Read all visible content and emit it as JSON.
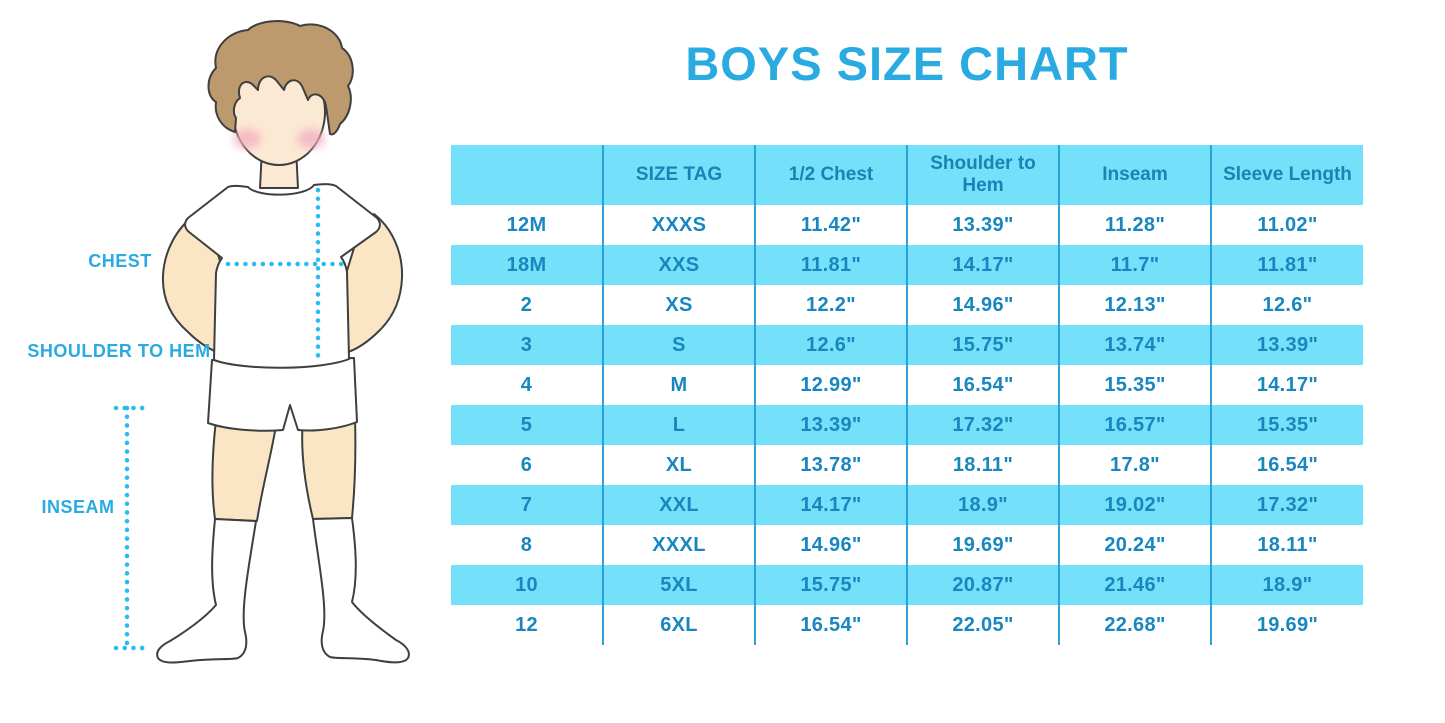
{
  "title": "BOYS SIZE CHART",
  "illustration": {
    "labels": {
      "chest": "CHEST",
      "shoulder_to_hem": "SHOULDER TO HEM",
      "inseam": "INSEAM"
    }
  },
  "chart_data": {
    "type": "table",
    "title": "BOYS SIZE CHART",
    "columns": [
      "",
      "SIZE TAG",
      "1/2 Chest",
      "Shoulder to Hem",
      "Inseam",
      "Sleeve Length"
    ],
    "rows": [
      [
        "12M",
        "XXXS",
        "11.42\"",
        "13.39\"",
        "11.28\"",
        "11.02\""
      ],
      [
        "18M",
        "XXS",
        "11.81\"",
        "14.17\"",
        "11.7\"",
        "11.81\""
      ],
      [
        "2",
        "XS",
        "12.2\"",
        "14.96\"",
        "12.13\"",
        "12.6\""
      ],
      [
        "3",
        "S",
        "12.6\"",
        "15.75\"",
        "13.74\"",
        "13.39\""
      ],
      [
        "4",
        "M",
        "12.99\"",
        "16.54\"",
        "15.35\"",
        "14.17\""
      ],
      [
        "5",
        "L",
        "13.39\"",
        "17.32\"",
        "16.57\"",
        "15.35\""
      ],
      [
        "6",
        "XL",
        "13.78\"",
        "18.11\"",
        "17.8\"",
        "16.54\""
      ],
      [
        "7",
        "XXL",
        "14.17\"",
        "18.9\"",
        "19.02\"",
        "17.32\""
      ],
      [
        "8",
        "XXXL",
        "14.96\"",
        "19.69\"",
        "20.24\"",
        "18.11\""
      ],
      [
        "10",
        "5XL",
        "15.75\"",
        "20.87\"",
        "21.46\"",
        "18.9\""
      ],
      [
        "12",
        "6XL",
        "16.54\"",
        "22.05\"",
        "22.68\"",
        "19.69\""
      ]
    ],
    "row_striping": [
      "white",
      "cyan"
    ],
    "legend_position": "none",
    "grid": "vertical-dividers-only"
  },
  "colors": {
    "accent_blue": "#29ABE2",
    "band_cyan": "#75E0F9",
    "divider_blue": "#2BA3D7",
    "table_text": "#1987BF",
    "dotted_cyan": "#29BCEE",
    "hair_brown": "#BC9A6E",
    "skin": "#FAE5C4"
  }
}
